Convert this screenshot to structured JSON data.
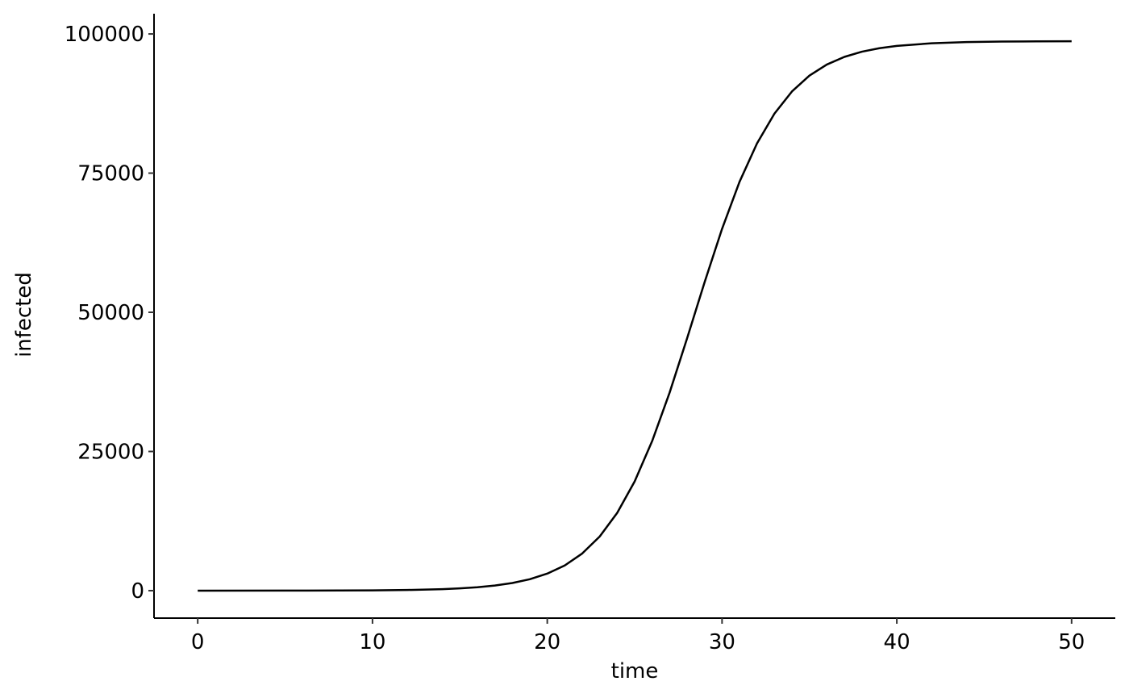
{
  "chart_data": {
    "type": "line",
    "x_label": "time",
    "y_label": "infected",
    "x": [
      0,
      5,
      10,
      12,
      14,
      15,
      16,
      17,
      18,
      19,
      20,
      21,
      22,
      23,
      24,
      25,
      26,
      27,
      28,
      29,
      30,
      31,
      32,
      33,
      34,
      35,
      36,
      37,
      38,
      39,
      40,
      42,
      44,
      46,
      48,
      50
    ],
    "series": [
      {
        "color": "#000000",
        "values": [
          1,
          7,
          52,
          119,
          269,
          405,
          610,
          913,
          1370,
          2048,
          3056,
          4527,
          6674,
          9724,
          13960,
          19620,
          26860,
          35570,
          45320,
          55390,
          64980,
          73440,
          80340,
          85700,
          89670,
          92520,
          94510,
          95880,
          96810,
          97440,
          97860,
          98330,
          98540,
          98630,
          98670,
          98690
        ]
      }
    ],
    "xlim": [
      -2.5,
      52.5
    ],
    "ylim": [
      -4935,
      103635
    ],
    "xticks": [
      0,
      10,
      20,
      30,
      40,
      50
    ],
    "yticks": [
      0,
      25000,
      50000,
      75000,
      100000
    ],
    "grid": false
  }
}
